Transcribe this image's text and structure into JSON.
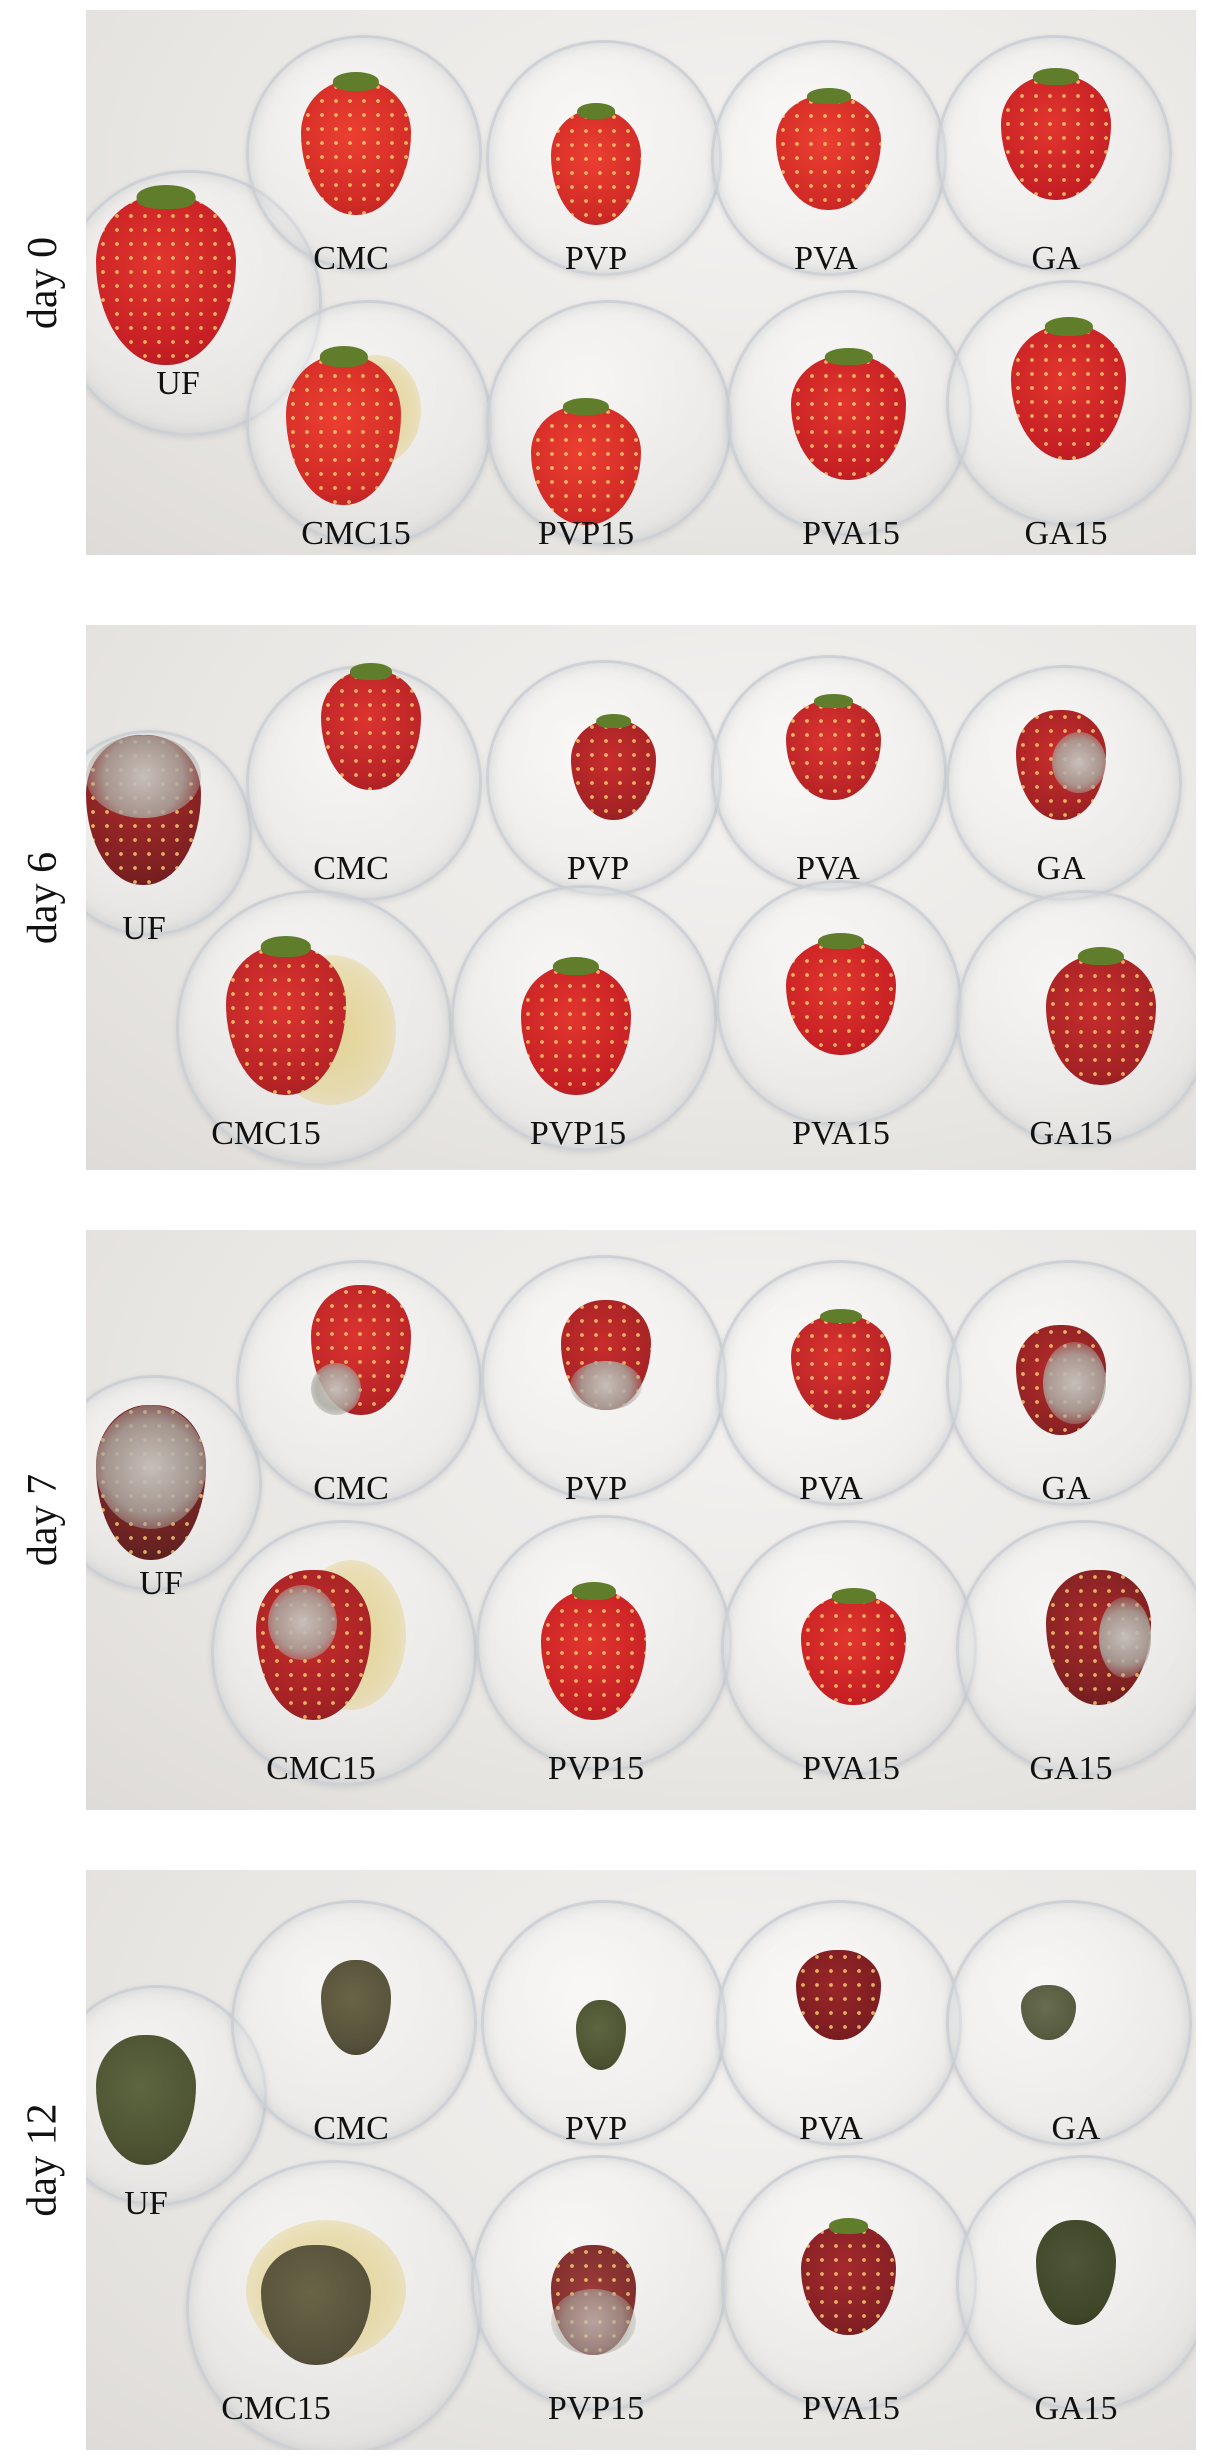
{
  "panels": [
    {
      "day_label": "day 0",
      "labels": {
        "uf": "UF",
        "cmc": "CMC",
        "pvp": "PVP",
        "pva": "PVA",
        "ga": "GA",
        "cmc15": "CMC15",
        "pvp15": "PVP15",
        "pva15": "PVA15",
        "ga15": "GA15"
      }
    },
    {
      "day_label": "day 6",
      "labels": {
        "uf": "UF",
        "cmc": "CMC",
        "pvp": "PVP",
        "pva": "PVA",
        "ga": "GA",
        "cmc15": "CMC15",
        "pvp15": "PVP15",
        "pva15": "PVA15",
        "ga15": "GA15"
      }
    },
    {
      "day_label": "day 7",
      "labels": {
        "uf": "UF",
        "cmc": "CMC",
        "pvp": "PVP",
        "pva": "PVA",
        "ga": "GA",
        "cmc15": "CMC15",
        "pvp15": "PVP15",
        "pva15": "PVA15",
        "ga15": "GA15"
      }
    },
    {
      "day_label": "day 12",
      "labels": {
        "uf": "UF",
        "cmc": "CMC",
        "pvp": "PVP",
        "pva": "PVA",
        "ga": "GA",
        "cmc15": "CMC15",
        "pvp15": "PVP15",
        "pva15": "PVA15",
        "ga15": "GA15"
      }
    }
  ],
  "colors": {
    "fresh": "#d8282a",
    "aging": "#b3242a",
    "dark": "#8e2128",
    "decayed": "#4c5231",
    "background": "#e9e7e4",
    "text": "#111111"
  }
}
